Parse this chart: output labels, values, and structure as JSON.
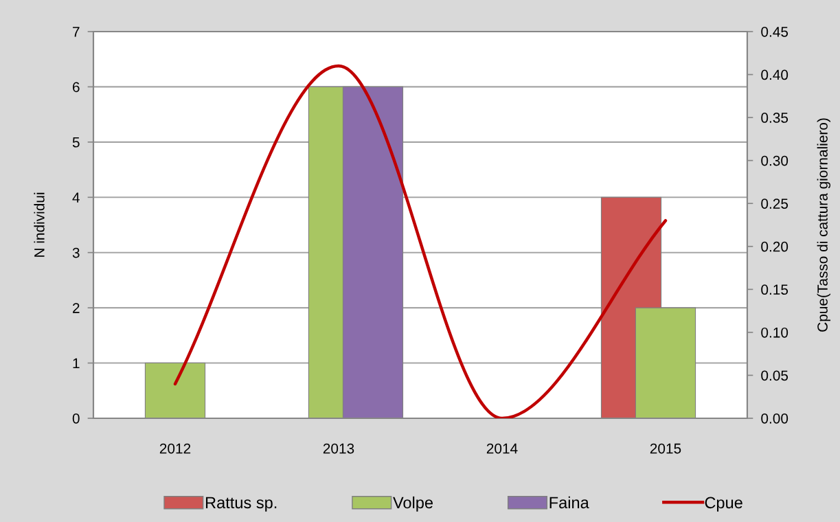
{
  "chart_data": {
    "type": "bar",
    "categories": [
      "2012",
      "2013",
      "2014",
      "2015"
    ],
    "series": [
      {
        "name": "Rattus sp.",
        "color": "#cd5654",
        "values": [
          null,
          null,
          null,
          4
        ]
      },
      {
        "name": "Volpe",
        "color": "#a8c662",
        "values": [
          1,
          6,
          null,
          2
        ]
      },
      {
        "name": "Faina",
        "color": "#8a6dab",
        "values": [
          null,
          6,
          null,
          null
        ]
      },
      {
        "name": "Cpue",
        "type": "line",
        "axis": "y2",
        "color": "#c00000",
        "values": [
          0.04,
          0.41,
          0,
          0.23
        ]
      }
    ],
    "ylabel": "N individui",
    "y2label": "Cpue(Tasso di cattura giornaliero)",
    "ylim": [
      0,
      7
    ],
    "yticks": [
      0,
      1,
      2,
      3,
      4,
      5,
      6,
      7
    ],
    "y2lim": [
      0,
      0.45
    ],
    "y2ticks": [
      {
        "value": 0,
        "label": "0.00"
      },
      {
        "value": 0.05,
        "label": "0.05"
      },
      {
        "value": 0.1,
        "label": "0.10"
      },
      {
        "value": 0.15,
        "label": "0.15"
      },
      {
        "value": 0.2,
        "label": "0.20"
      },
      {
        "value": 0.25,
        "label": "0.25"
      },
      {
        "value": 0.3,
        "label": "0.30"
      },
      {
        "value": 0.35,
        "label": "0.35"
      },
      {
        "value": 0.4,
        "label": "0.40"
      },
      {
        "value": 0.45,
        "label": "0.45"
      }
    ],
    "grid": "y",
    "legend": "bottom",
    "line_style": "solid"
  }
}
